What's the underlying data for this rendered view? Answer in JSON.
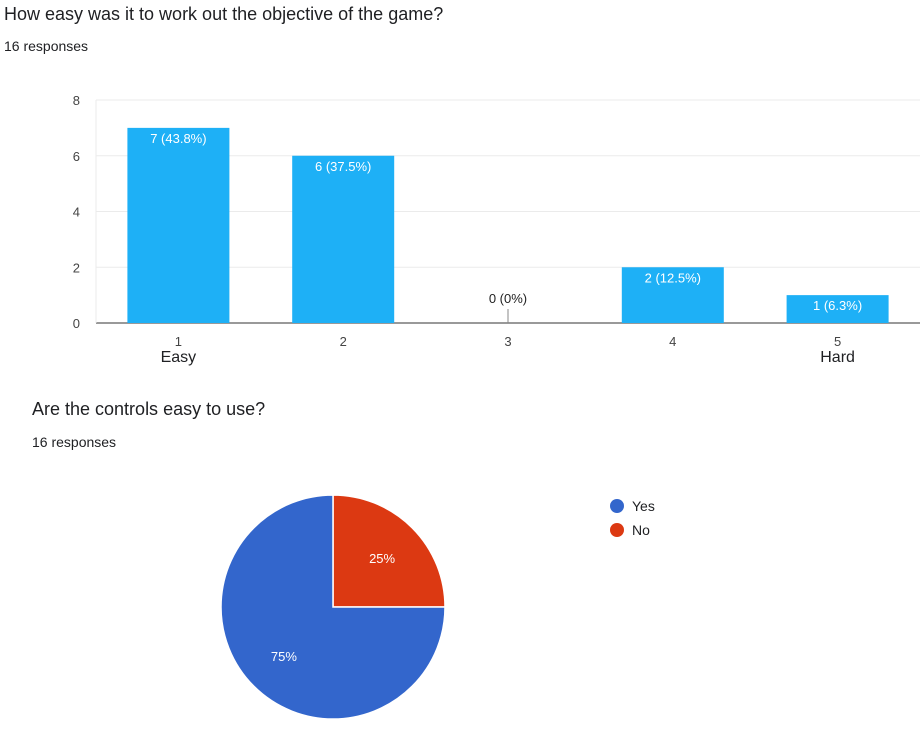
{
  "questions": [
    {
      "title": "How easy was it to work out the objective of the game?",
      "responses": "16 responses"
    },
    {
      "title": "Are the controls easy to use?",
      "responses": "16 responses"
    }
  ],
  "chart_data": [
    {
      "type": "bar",
      "categories": [
        "1",
        "2",
        "3",
        "4",
        "5"
      ],
      "category_sublabels": [
        "Easy",
        "",
        "",
        "",
        "Hard"
      ],
      "values": [
        7,
        6,
        0,
        2,
        1
      ],
      "data_labels": [
        "7 (43.8%)",
        "6 (37.5%)",
        "0 (0%)",
        "2 (12.5%)",
        "1 (6.3%)"
      ],
      "ylim": [
        0,
        8
      ],
      "yticks": [
        "0",
        "2",
        "4",
        "6",
        "8"
      ],
      "grid": true,
      "color": "#1eb0f6"
    },
    {
      "type": "pie",
      "labels": [
        "Yes",
        "No"
      ],
      "values": [
        75,
        25
      ],
      "slice_labels": [
        "75%",
        "25%"
      ],
      "colors": [
        "#3366cc",
        "#dc3912"
      ],
      "legend": "right"
    }
  ]
}
